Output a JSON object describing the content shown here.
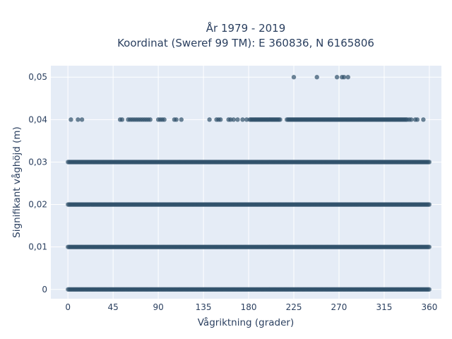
{
  "chart_data": {
    "type": "scatter",
    "title": "År 1979 - 2019",
    "subtitle": "Koordinat (Sweref 99 TM): E 360836, N 6165806",
    "xlabel": "Vågriktning (grader)",
    "ylabel": "Signifikant våghöjd (m)",
    "xlim": [
      -17,
      372
    ],
    "ylim": [
      -0.0022,
      0.0527
    ],
    "x_ticks": [
      {
        "value": 0,
        "label": "0"
      },
      {
        "value": 45,
        "label": "45"
      },
      {
        "value": 90,
        "label": "90"
      },
      {
        "value": 135,
        "label": "135"
      },
      {
        "value": 180,
        "label": "180"
      },
      {
        "value": 225,
        "label": "225"
      },
      {
        "value": 270,
        "label": "270"
      },
      {
        "value": 315,
        "label": "315"
      },
      {
        "value": 360,
        "label": "360"
      }
    ],
    "y_ticks": [
      {
        "value": 0,
        "label": "0"
      },
      {
        "value": 0.01,
        "label": "0,01"
      },
      {
        "value": 0.02,
        "label": "0,02"
      },
      {
        "value": 0.03,
        "label": "0,03"
      },
      {
        "value": 0.04,
        "label": "0,04"
      },
      {
        "value": 0.05,
        "label": "0,05"
      }
    ],
    "grid": true,
    "marker_color": "#2f5069",
    "plot_background": "#e5ecf6",
    "series": [
      {
        "values": [
          {
            "y": 0,
            "x_ranges": [
              [
                0,
                360
              ]
            ]
          },
          {
            "y": 0.01,
            "x_ranges": [
              [
                0,
                360
              ]
            ]
          },
          {
            "y": 0.02,
            "x_ranges": [
              [
                0,
                360
              ]
            ]
          },
          {
            "y": 0.03,
            "x_ranges": [
              [
                0,
                360
              ]
            ]
          },
          {
            "y": 0.04,
            "x": [
              3,
              10,
              14,
              52,
              54,
              60,
              62,
              64,
              66,
              68,
              70,
              72,
              74,
              76,
              78,
              80,
              82,
              90,
              92,
              94,
              96,
              106,
              108,
              113,
              141,
              148,
              150,
              152,
              160,
              162,
              165,
              169,
              174,
              178
            ]
          },
          {
            "y": 0.04,
            "x_ranges": [
              [
                181,
                212
              ],
              [
                218,
                338
              ]
            ]
          },
          {
            "y": 0.04,
            "x": [
              340,
              342,
              346,
              348,
              354
            ]
          },
          {
            "y": 0.05,
            "x": [
              225,
              248,
              268,
              273,
              275,
              279
            ]
          }
        ]
      }
    ]
  }
}
